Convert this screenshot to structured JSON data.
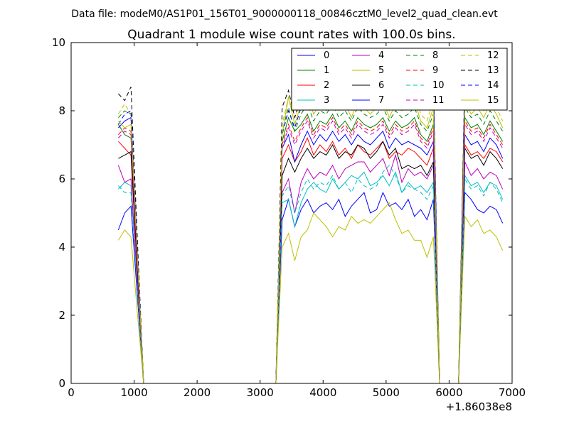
{
  "figure": {
    "suptitle": "Data file: modeM0/AS1P01_156T01_9000000118_00846cztM0_level2_quad_clean.evt",
    "title": "Quadrant 1 module wise count rates with 100.0s bins.",
    "x_offset_label": "+1.86038e8"
  },
  "chart_data": {
    "type": "line",
    "title": "Quadrant 1 module wise count rates with 100.0s bins.",
    "xlabel": "",
    "ylabel": "",
    "xlim": [
      0,
      7000
    ],
    "ylim": [
      0,
      10
    ],
    "x_offset": 186038000,
    "xticks": [
      0,
      1000,
      2000,
      3000,
      4000,
      5000,
      6000,
      7000
    ],
    "yticks": [
      0,
      2,
      4,
      6,
      8,
      10
    ],
    "grid": false,
    "legend_position": "top-right",
    "legend_columns": 4,
    "x": [
      750,
      850,
      950,
      1050,
      1150,
      1250,
      1350,
      1450,
      1550,
      1650,
      1750,
      1850,
      1950,
      2050,
      2150,
      2250,
      2350,
      2450,
      2550,
      2650,
      2750,
      2850,
      2950,
      3050,
      3150,
      3250,
      3350,
      3450,
      3550,
      3650,
      3750,
      3850,
      3950,
      4050,
      4150,
      4250,
      4350,
      4450,
      4550,
      4650,
      4750,
      4850,
      4950,
      5050,
      5150,
      5250,
      5350,
      5450,
      5550,
      5650,
      5750,
      5850,
      5950,
      6050,
      6150,
      6250,
      6350,
      6450,
      6550,
      6650,
      6750,
      6850
    ],
    "series": [
      {
        "name": "0",
        "color": "#0000ff",
        "dash": "solid",
        "values": [
          4.5,
          5.0,
          5.2,
          2.6,
          0,
          0,
          0,
          0,
          0,
          0,
          0,
          0,
          0,
          0,
          0,
          0,
          0,
          0,
          0,
          0,
          0,
          0,
          0,
          0,
          0,
          0,
          4.8,
          5.4,
          4.6,
          5.1,
          5.4,
          5.0,
          5.2,
          5.3,
          5.1,
          5.4,
          4.9,
          5.2,
          5.4,
          5.6,
          5.0,
          5.1,
          5.6,
          5.2,
          5.3,
          5.1,
          5.4,
          4.9,
          5.1,
          4.8,
          5.4,
          0,
          0,
          0,
          0,
          5.6,
          5.4,
          5.1,
          5.0,
          5.2,
          5.1,
          4.7
        ]
      },
      {
        "name": "1",
        "color": "#008000",
        "dash": "solid",
        "values": [
          7.6,
          7.3,
          7.2,
          3.6,
          0,
          0,
          0,
          0,
          0,
          0,
          0,
          0,
          0,
          0,
          0,
          0,
          0,
          0,
          0,
          0,
          0,
          0,
          0,
          0,
          0,
          0,
          7.1,
          7.8,
          7.4,
          7.6,
          7.9,
          7.4,
          7.7,
          7.6,
          7.9,
          7.5,
          7.7,
          7.4,
          7.8,
          7.6,
          7.5,
          7.6,
          7.8,
          7.4,
          7.7,
          7.5,
          7.6,
          7.8,
          7.3,
          7.1,
          7.6,
          0,
          0,
          0,
          0,
          7.8,
          7.5,
          7.6,
          7.3,
          7.7,
          7.4,
          7.1
        ]
      },
      {
        "name": "2",
        "color": "#ff0000",
        "dash": "solid",
        "values": [
          7.1,
          6.9,
          6.7,
          3.3,
          0,
          0,
          0,
          0,
          0,
          0,
          0,
          0,
          0,
          0,
          0,
          0,
          0,
          0,
          0,
          0,
          0,
          0,
          0,
          0,
          0,
          0,
          6.6,
          7.0,
          6.5,
          6.8,
          7.2,
          6.7,
          7.0,
          6.8,
          7.1,
          6.7,
          6.9,
          6.6,
          7.0,
          6.8,
          6.7,
          6.9,
          7.1,
          6.6,
          6.8,
          6.7,
          6.9,
          6.8,
          6.6,
          6.4,
          6.9,
          0,
          0,
          0,
          0,
          7.0,
          6.7,
          6.8,
          6.6,
          6.9,
          6.8,
          6.5
        ]
      },
      {
        "name": "3",
        "color": "#00bfbf",
        "dash": "solid",
        "values": [
          5.7,
          5.9,
          5.8,
          2.9,
          0,
          0,
          0,
          0,
          0,
          0,
          0,
          0,
          0,
          0,
          0,
          0,
          0,
          0,
          0,
          0,
          0,
          0,
          0,
          0,
          0,
          0,
          5.3,
          5.4,
          4.6,
          5.3,
          5.7,
          5.9,
          5.7,
          5.6,
          6.0,
          5.7,
          5.9,
          6.1,
          6.0,
          6.2,
          5.8,
          5.9,
          6.1,
          5.8,
          6.2,
          5.6,
          5.9,
          5.7,
          5.8,
          5.6,
          5.9,
          0,
          0,
          0,
          0,
          6.1,
          5.8,
          5.9,
          5.6,
          5.9,
          5.8,
          5.4
        ]
      },
      {
        "name": "4",
        "color": "#bf00bf",
        "dash": "solid",
        "values": [
          6.4,
          5.9,
          6.0,
          3.0,
          0,
          0,
          0,
          0,
          0,
          0,
          0,
          0,
          0,
          0,
          0,
          0,
          0,
          0,
          0,
          0,
          0,
          0,
          0,
          0,
          0,
          0,
          5.6,
          6.0,
          5.0,
          5.9,
          6.3,
          6.0,
          6.2,
          6.1,
          6.4,
          6.0,
          6.3,
          6.4,
          6.5,
          6.5,
          6.2,
          6.4,
          6.6,
          6.1,
          6.7,
          5.9,
          6.3,
          6.1,
          6.2,
          6.0,
          6.4,
          0,
          0,
          0,
          0,
          6.5,
          6.1,
          6.3,
          6.0,
          6.2,
          6.1,
          5.7
        ]
      },
      {
        "name": "5",
        "color": "#bfbf00",
        "dash": "solid",
        "values": [
          4.2,
          4.5,
          4.3,
          2.1,
          0,
          0,
          0,
          0,
          0,
          0,
          0,
          0,
          0,
          0,
          0,
          0,
          0,
          0,
          0,
          0,
          0,
          0,
          0,
          0,
          0,
          0,
          4.0,
          4.4,
          3.6,
          4.3,
          4.5,
          5.0,
          4.8,
          4.6,
          4.3,
          4.6,
          4.5,
          4.9,
          4.7,
          4.8,
          4.7,
          4.9,
          5.1,
          5.3,
          4.8,
          4.4,
          4.5,
          4.2,
          4.2,
          3.7,
          4.3,
          0,
          0,
          0,
          0,
          4.9,
          4.6,
          4.8,
          4.4,
          4.5,
          4.3,
          3.9
        ]
      },
      {
        "name": "6",
        "color": "#000000",
        "dash": "solid",
        "values": [
          6.6,
          6.7,
          6.8,
          3.4,
          0,
          0,
          0,
          0,
          0,
          0,
          0,
          0,
          0,
          0,
          0,
          0,
          0,
          0,
          0,
          0,
          0,
          0,
          0,
          0,
          0,
          0,
          6.1,
          6.6,
          6.2,
          6.6,
          6.9,
          6.6,
          6.8,
          6.7,
          7.0,
          6.6,
          6.8,
          6.7,
          7.0,
          6.9,
          6.6,
          6.8,
          7.1,
          6.7,
          6.9,
          6.3,
          6.4,
          6.3,
          6.4,
          6.1,
          6.5,
          0,
          0,
          0,
          0,
          6.9,
          6.6,
          6.7,
          6.4,
          6.8,
          6.6,
          6.3
        ]
      },
      {
        "name": "7",
        "color": "#0000ff",
        "dash": "solid",
        "values": [
          7.5,
          7.7,
          7.8,
          3.9,
          0,
          0,
          0,
          0,
          0,
          0,
          0,
          0,
          0,
          0,
          0,
          0,
          0,
          0,
          0,
          0,
          0,
          0,
          0,
          0,
          0,
          0,
          6.9,
          7.3,
          6.5,
          7.0,
          7.4,
          7.0,
          7.3,
          7.1,
          7.4,
          7.1,
          7.3,
          7.0,
          7.3,
          7.1,
          7.0,
          7.2,
          7.4,
          6.9,
          7.2,
          7.0,
          7.1,
          7.0,
          6.9,
          6.7,
          7.1,
          0,
          0,
          0,
          0,
          7.3,
          7.0,
          7.1,
          6.8,
          7.2,
          7.0,
          6.6
        ]
      },
      {
        "name": "8",
        "color": "#008000",
        "dash": "dashed",
        "values": [
          7.8,
          8.0,
          7.9,
          3.9,
          0,
          0,
          0,
          0,
          0,
          0,
          0,
          0,
          0,
          0,
          0,
          0,
          0,
          0,
          0,
          0,
          0,
          0,
          0,
          0,
          0,
          0,
          7.4,
          8.1,
          7.4,
          7.9,
          8.2,
          7.7,
          8.0,
          7.9,
          8.2,
          7.8,
          8.0,
          7.7,
          8.1,
          7.9,
          7.8,
          7.9,
          8.1,
          7.7,
          8.0,
          7.8,
          7.9,
          8.1,
          7.6,
          7.4,
          7.9,
          0,
          0,
          0,
          0,
          8.1,
          7.8,
          7.9,
          7.6,
          8.0,
          7.7,
          7.4
        ]
      },
      {
        "name": "9",
        "color": "#ff0000",
        "dash": "dashed",
        "values": [
          7.3,
          7.5,
          7.4,
          3.7,
          0,
          0,
          0,
          0,
          0,
          0,
          0,
          0,
          0,
          0,
          0,
          0,
          0,
          0,
          0,
          0,
          0,
          0,
          0,
          0,
          0,
          0,
          7.0,
          7.6,
          7.1,
          7.5,
          7.8,
          7.3,
          7.6,
          7.5,
          7.8,
          7.4,
          7.6,
          7.3,
          7.7,
          7.5,
          7.4,
          7.5,
          7.7,
          7.3,
          7.6,
          7.4,
          7.5,
          7.7,
          7.2,
          7.0,
          7.5,
          0,
          0,
          0,
          0,
          7.7,
          7.4,
          7.5,
          7.2,
          7.6,
          7.3,
          7.0
        ]
      },
      {
        "name": "10",
        "color": "#00bfbf",
        "dash": "dashed",
        "values": [
          5.8,
          5.6,
          5.6,
          2.8,
          0,
          0,
          0,
          0,
          0,
          0,
          0,
          0,
          0,
          0,
          0,
          0,
          0,
          0,
          0,
          0,
          0,
          0,
          0,
          0,
          0,
          0,
          5.5,
          5.8,
          5.0,
          5.6,
          6.0,
          5.7,
          5.9,
          5.8,
          6.1,
          5.7,
          5.9,
          5.6,
          6.0,
          5.8,
          5.7,
          5.8,
          6.2,
          6.4,
          6.1,
          5.6,
          5.8,
          5.7,
          5.6,
          5.4,
          5.8,
          0,
          0,
          0,
          0,
          6.0,
          5.7,
          5.8,
          5.5,
          5.9,
          5.7,
          5.3
        ]
      },
      {
        "name": "11",
        "color": "#bf00bf",
        "dash": "dashed",
        "values": [
          7.2,
          7.4,
          7.3,
          3.6,
          0,
          0,
          0,
          0,
          0,
          0,
          0,
          0,
          0,
          0,
          0,
          0,
          0,
          0,
          0,
          0,
          0,
          0,
          0,
          0,
          0,
          0,
          6.9,
          7.5,
          7.0,
          7.4,
          7.7,
          7.2,
          7.5,
          7.4,
          7.7,
          7.3,
          7.5,
          7.2,
          7.6,
          7.4,
          7.3,
          7.4,
          7.6,
          7.2,
          7.5,
          7.3,
          7.4,
          7.6,
          7.1,
          6.9,
          7.4,
          0,
          0,
          0,
          0,
          7.6,
          7.3,
          7.4,
          7.1,
          7.5,
          7.2,
          6.9
        ]
      },
      {
        "name": "12",
        "color": "#bfbf00",
        "dash": "dashed",
        "values": [
          7.9,
          8.2,
          7.9,
          3.9,
          0,
          0,
          0,
          0,
          0,
          0,
          0,
          0,
          0,
          0,
          0,
          0,
          0,
          0,
          0,
          0,
          0,
          0,
          0,
          0,
          0,
          0,
          7.6,
          8.4,
          7.8,
          8.3,
          8.6,
          8.1,
          8.4,
          8.2,
          8.6,
          8.1,
          8.4,
          8.0,
          8.5,
          8.3,
          8.1,
          8.3,
          8.5,
          8.0,
          8.4,
          8.2,
          8.3,
          8.5,
          7.9,
          7.7,
          8.3,
          0,
          0,
          0,
          0,
          8.5,
          8.1,
          8.3,
          8.0,
          8.4,
          8.1,
          7.7
        ]
      },
      {
        "name": "13",
        "color": "#000000",
        "dash": "dashed",
        "values": [
          8.5,
          8.3,
          8.7,
          4.3,
          0,
          0,
          0,
          0,
          0,
          0,
          0,
          0,
          0,
          0,
          0,
          0,
          0,
          0,
          0,
          0,
          0,
          0,
          0,
          0,
          0,
          0,
          8.1,
          8.6,
          7.8,
          8.4,
          8.9,
          8.5,
          8.8,
          8.6,
          9.1,
          8.7,
          8.9,
          8.5,
          8.9,
          8.8,
          8.6,
          8.7,
          9.0,
          8.5,
          8.8,
          8.6,
          8.7,
          8.9,
          8.4,
          8.2,
          8.7,
          0,
          0,
          0,
          0,
          8.9,
          8.6,
          8.7,
          8.4,
          8.8,
          8.5,
          8.2
        ]
      },
      {
        "name": "14",
        "color": "#0000ff",
        "dash": "dashed",
        "values": [
          7.6,
          7.9,
          8.0,
          4.0,
          0,
          0,
          0,
          0,
          0,
          0,
          0,
          0,
          0,
          0,
          0,
          0,
          0,
          0,
          0,
          0,
          0,
          0,
          0,
          0,
          0,
          0,
          7.3,
          8.0,
          7.5,
          8.1,
          8.6,
          8.8,
          9.1,
          9.3,
          9.2,
          8.9,
          9.2,
          8.8,
          9.3,
          9.1,
          8.9,
          9.0,
          9.3,
          8.8,
          9.1,
          8.9,
          9.0,
          9.2,
          8.7,
          8.5,
          9.0,
          0,
          0,
          0,
          0,
          9.2,
          8.9,
          9.0,
          8.7,
          9.1,
          8.8,
          8.4
        ]
      },
      {
        "name": "15",
        "color": "#bfbf00",
        "dash": "solid",
        "values": [
          7.7,
          7.5,
          7.6,
          3.8,
          0,
          0,
          0,
          0,
          0,
          0,
          0,
          0,
          0,
          0,
          0,
          0,
          0,
          0,
          0,
          0,
          0,
          0,
          0,
          0,
          0,
          0,
          7.3,
          8.4,
          7.6,
          8.2,
          8.5,
          7.9,
          8.2,
          8.0,
          8.4,
          8.0,
          8.2,
          7.8,
          8.3,
          8.1,
          7.9,
          8.1,
          8.3,
          7.8,
          8.2,
          8.0,
          8.1,
          8.3,
          7.7,
          7.5,
          8.1,
          0,
          0,
          0,
          0,
          8.3,
          7.9,
          8.1,
          7.8,
          8.2,
          7.9,
          7.5
        ]
      }
    ]
  }
}
